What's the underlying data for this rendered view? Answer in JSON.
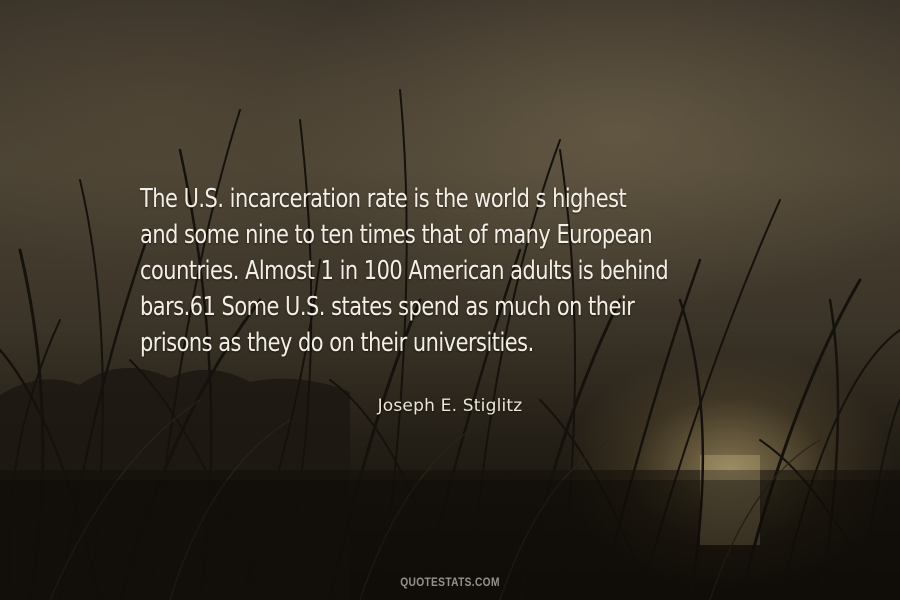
{
  "quote": {
    "lines": [
      "The U.S. incarceration rate is the world  s highest",
      "and some nine to ten times that of many European",
      "countries. Almost 1 in 100 American adults is behind",
      "bars.61 Some U.S. states spend as much on their",
      "prisons as they do on their universities."
    ]
  },
  "author": "Joseph E. Stiglitz",
  "watermark": "QUOTESTATS.COM",
  "colors": {
    "text": "#f3efe6",
    "sky": "#4a4233",
    "ground": "#14110c",
    "glow": "#d6be82"
  }
}
